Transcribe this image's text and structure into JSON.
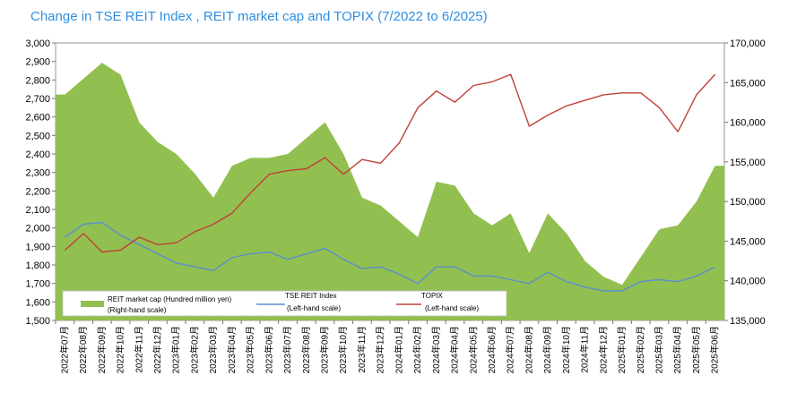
{
  "title": "Change in TSE REIT Index , REIT market cap and TOPIX  (7/2022 to 6/2025)",
  "colors": {
    "market_cap": "#92c050",
    "reit_index": "#5b8ed0",
    "topix": "#c0413a",
    "title": "#2f8fe0"
  },
  "chart_data": {
    "type": "area+line",
    "x_months": [
      "2022年07月",
      "2022年08月",
      "2022年09月",
      "2022年10月",
      "2022年11月",
      "2022年12月",
      "2023年01月",
      "2023年02月",
      "2023年03月",
      "2023年04月",
      "2023年05月",
      "2023年06月",
      "2023年07月",
      "2023年08月",
      "2023年09月",
      "2023年10月",
      "2023年11月",
      "2023年12月",
      "2024年01月",
      "2024年02月",
      "2024年03月",
      "2024年04月",
      "2024年05月",
      "2024年06月",
      "2024年07月",
      "2024年08月",
      "2024年09月",
      "2024年10月",
      "2024年11月",
      "2024年12月",
      "2025年01月",
      "2025年02月",
      "2025年03月",
      "2025年04月",
      "2025年05月",
      "2025年06月"
    ],
    "left_axis": {
      "min": 1500,
      "max": 3000,
      "step": 100,
      "tick_labels": [
        "1,500",
        "1,600",
        "1,700",
        "1,800",
        "1,900",
        "2,000",
        "2,100",
        "2,200",
        "2,300",
        "2,400",
        "2,500",
        "2,600",
        "2,700",
        "2,800",
        "2,900",
        "3,000"
      ]
    },
    "right_axis": {
      "min": 135000,
      "max": 170000,
      "step": 5000,
      "tick_labels": [
        "135,000",
        "140,000",
        "145,000",
        "150,000",
        "155,000",
        "160,000",
        "165,000",
        "170,000"
      ]
    },
    "series": [
      {
        "name": "REIT market cap (Hundred million yen)",
        "axis_note": "(Right-hand scale)",
        "axis": "right",
        "style": "area",
        "values": [
          163500,
          165500,
          167500,
          166000,
          160000,
          157500,
          156000,
          153500,
          150500,
          154500,
          155500,
          155500,
          156000,
          158000,
          160000,
          156000,
          150500,
          149500,
          147500,
          145500,
          152500,
          152000,
          148500,
          147000,
          148500,
          143500,
          148500,
          146000,
          142500,
          140500,
          139500,
          143000,
          146500,
          147000,
          150000,
          154500
        ]
      },
      {
        "name": "TSE REIT Index",
        "axis_note": "(Left-hand scale)",
        "axis": "left",
        "style": "line",
        "values": [
          1950,
          2020,
          2030,
          1960,
          1910,
          1860,
          1810,
          1790,
          1770,
          1840,
          1860,
          1870,
          1830,
          1860,
          1890,
          1830,
          1780,
          1790,
          1750,
          1700,
          1790,
          1790,
          1740,
          1740,
          1720,
          1700,
          1760,
          1710,
          1680,
          1660,
          1660,
          1710,
          1720,
          1710,
          1740,
          1790
        ]
      },
      {
        "name": "TOPIX",
        "axis_note": "(Left-hand scale)",
        "axis": "left",
        "style": "line",
        "values": [
          1880,
          1970,
          1870,
          1880,
          1950,
          1910,
          1920,
          1980,
          2020,
          2080,
          2190,
          2290,
          2310,
          2320,
          2380,
          2290,
          2370,
          2350,
          2460,
          2650,
          2740,
          2680,
          2770,
          2790,
          2830,
          2550,
          2610,
          2660,
          2690,
          2720,
          2730,
          2730,
          2650,
          2520,
          2720,
          2830
        ]
      }
    ]
  }
}
